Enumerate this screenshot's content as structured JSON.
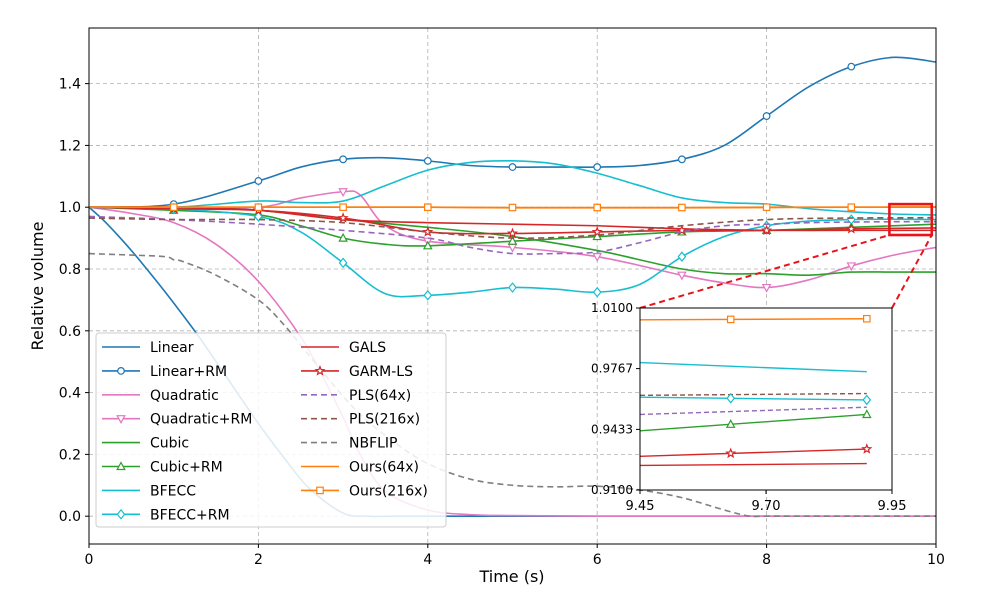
{
  "chart_data": {
    "type": "line",
    "xlabel": "Time (s)",
    "ylabel": "Relative volume",
    "xlim": [
      0,
      10
    ],
    "ylim": [
      -0.09,
      1.58
    ],
    "xticks": [
      0,
      2,
      4,
      6,
      8,
      10
    ],
    "xtick_labels": [
      "0",
      "2",
      "4",
      "6",
      "8",
      "10"
    ],
    "yticks": [
      0.0,
      0.2,
      0.4,
      0.6,
      0.8,
      1.0,
      1.2,
      1.4
    ],
    "ytick_labels": [
      "0.0",
      "0.2",
      "0.4",
      "0.6",
      "0.8",
      "1.0",
      "1.2",
      "1.4"
    ],
    "grid": true,
    "legend_position": "lower-left",
    "legend_columns": 2,
    "series": [
      {
        "name": "Linear",
        "color": "#1f77b4",
        "dash": "solid",
        "marker": "none",
        "x": [
          0,
          0.2,
          0.5,
          0.8,
          1.0,
          1.3,
          1.6,
          2.0,
          2.3,
          2.6,
          3.0,
          3.3,
          3.6,
          4.0,
          5.0,
          6.0,
          8.0,
          10.0
        ],
        "y": [
          1.0,
          0.95,
          0.86,
          0.76,
          0.69,
          0.58,
          0.46,
          0.3,
          0.19,
          0.09,
          0.01,
          0.0,
          0.0,
          0.0,
          0.0,
          0.0,
          0.0,
          0.0
        ]
      },
      {
        "name": "Linear+RM",
        "color": "#1f77b4",
        "dash": "solid",
        "marker": "circle",
        "x": [
          0,
          1,
          2,
          2.5,
          3,
          3.5,
          4,
          4.5,
          5,
          5.5,
          6,
          6.5,
          7,
          7.5,
          8,
          8.5,
          9,
          9.5,
          10
        ],
        "y": [
          1.0,
          1.01,
          1.085,
          1.13,
          1.155,
          1.16,
          1.15,
          1.135,
          1.13,
          1.13,
          1.13,
          1.135,
          1.155,
          1.2,
          1.295,
          1.39,
          1.455,
          1.485,
          1.47
        ],
        "marker_x": [
          1,
          2,
          3,
          4,
          5,
          6,
          7,
          8,
          9
        ]
      },
      {
        "name": "Quadratic",
        "color": "#e377c2",
        "dash": "solid",
        "marker": "none",
        "x": [
          0,
          0.5,
          1,
          1.5,
          2,
          2.5,
          2.8,
          3.0,
          3.2,
          3.5,
          4,
          4.5,
          5,
          6,
          8,
          10
        ],
        "y": [
          1.0,
          0.98,
          0.95,
          0.88,
          0.76,
          0.58,
          0.43,
          0.32,
          0.2,
          0.08,
          0.02,
          0.005,
          0.002,
          0.0,
          0.0,
          0.0
        ]
      },
      {
        "name": "Quadratic+RM",
        "color": "#e377c2",
        "dash": "solid",
        "marker": "triangle-down",
        "x": [
          0,
          1,
          2,
          2.5,
          3,
          3.2,
          3.5,
          4,
          5,
          6,
          7,
          7.5,
          8,
          8.5,
          9,
          9.5,
          10
        ],
        "y": [
          1.0,
          1.0,
          1.0,
          1.03,
          1.05,
          1.04,
          0.94,
          0.89,
          0.87,
          0.84,
          0.78,
          0.755,
          0.74,
          0.765,
          0.81,
          0.845,
          0.87
        ],
        "marker_x": [
          3,
          4,
          5,
          6,
          7,
          8,
          9
        ]
      },
      {
        "name": "Cubic",
        "color": "#2ca02c",
        "dash": "solid",
        "marker": "none",
        "x": [
          0,
          1,
          2,
          3,
          4,
          5,
          6,
          6.5,
          7,
          7.5,
          8,
          8.5,
          9,
          9.5,
          10
        ],
        "y": [
          1.0,
          1.0,
          0.99,
          0.96,
          0.935,
          0.905,
          0.86,
          0.83,
          0.8,
          0.785,
          0.785,
          0.78,
          0.79,
          0.79,
          0.79
        ]
      },
      {
        "name": "Cubic+RM",
        "color": "#2ca02c",
        "dash": "solid",
        "marker": "triangle-up",
        "x": [
          0,
          1,
          2,
          2.5,
          3,
          3.5,
          4,
          5,
          6,
          7,
          8,
          9,
          10
        ],
        "y": [
          1.0,
          0.99,
          0.975,
          0.94,
          0.9,
          0.88,
          0.875,
          0.89,
          0.905,
          0.92,
          0.925,
          0.935,
          0.945
        ],
        "marker_x": [
          1,
          2,
          3,
          4,
          5,
          6,
          7,
          8,
          9
        ]
      },
      {
        "name": "BFECC",
        "color": "#17becf",
        "dash": "solid",
        "marker": "none",
        "x": [
          0,
          1,
          2,
          2.5,
          3,
          3.5,
          4,
          4.5,
          5,
          5.5,
          6,
          6.5,
          7,
          7.5,
          8,
          8.5,
          9,
          9.5,
          10
        ],
        "y": [
          1.0,
          1.0,
          1.02,
          1.015,
          1.02,
          1.07,
          1.12,
          1.145,
          1.15,
          1.14,
          1.11,
          1.07,
          1.03,
          1.015,
          1.01,
          0.995,
          0.985,
          0.978,
          0.975
        ]
      },
      {
        "name": "BFECC+RM",
        "color": "#17becf",
        "dash": "solid",
        "marker": "diamond",
        "x": [
          0,
          1,
          2,
          2.5,
          3,
          3.5,
          4,
          4.5,
          5,
          5.5,
          6,
          6.5,
          7,
          7.5,
          8,
          8.5,
          9,
          9.5,
          10
        ],
        "y": [
          1.0,
          0.995,
          0.97,
          0.92,
          0.82,
          0.72,
          0.715,
          0.725,
          0.74,
          0.735,
          0.725,
          0.75,
          0.84,
          0.905,
          0.94,
          0.955,
          0.96,
          0.961,
          0.96
        ],
        "marker_x": [
          1,
          2,
          3,
          4,
          5,
          6,
          7,
          8,
          9
        ]
      },
      {
        "name": "GALS",
        "color": "#d62728",
        "dash": "solid",
        "marker": "none",
        "x": [
          0,
          1,
          2,
          3,
          4,
          5,
          6,
          7,
          8,
          9,
          10
        ],
        "y": [
          1.0,
          1.0,
          0.99,
          0.96,
          0.95,
          0.945,
          0.94,
          0.93,
          0.925,
          0.925,
          0.925
        ]
      },
      {
        "name": "GARM-LS",
        "color": "#d62728",
        "dash": "solid",
        "marker": "star",
        "x": [
          0,
          1,
          2,
          3,
          4,
          5,
          6,
          7,
          8,
          9,
          10
        ],
        "y": [
          1.0,
          0.995,
          0.99,
          0.965,
          0.92,
          0.915,
          0.92,
          0.925,
          0.925,
          0.93,
          0.933
        ],
        "marker_x": [
          1,
          2,
          3,
          4,
          5,
          6,
          7,
          8,
          9
        ]
      },
      {
        "name": "PLS(64x)",
        "color": "#9467bd",
        "dash": "dashed",
        "marker": "none",
        "x": [
          0,
          1,
          2,
          3,
          4,
          4.5,
          5,
          5.5,
          6,
          6.5,
          7,
          7.5,
          8,
          8.5,
          9,
          9.5,
          10
        ],
        "y": [
          0.97,
          0.96,
          0.945,
          0.925,
          0.9,
          0.87,
          0.85,
          0.85,
          0.855,
          0.885,
          0.92,
          0.94,
          0.945,
          0.95,
          0.952,
          0.953,
          0.953
        ]
      },
      {
        "name": "PLS(216x)",
        "color": "#8c564b",
        "dash": "dashed",
        "marker": "none",
        "x": [
          0,
          1,
          2,
          3,
          4,
          5,
          6,
          7,
          8,
          9,
          10
        ],
        "y": [
          0.965,
          0.96,
          0.96,
          0.95,
          0.92,
          0.9,
          0.91,
          0.94,
          0.96,
          0.965,
          0.966
        ]
      },
      {
        "name": "NBFLIP",
        "color": "#7f7f7f",
        "dash": "dashed",
        "marker": "none",
        "x": [
          0,
          0.5,
          0.9,
          1.0,
          1.1,
          1.5,
          2.0,
          2.3,
          2.6,
          2.9,
          3.2,
          3.6,
          4.0,
          4.5,
          5.0,
          5.5,
          6.0,
          6.5,
          7.0,
          7.5,
          7.8,
          8.0,
          9.0,
          10.0
        ],
        "y": [
          0.85,
          0.845,
          0.84,
          0.83,
          0.825,
          0.78,
          0.7,
          0.62,
          0.52,
          0.42,
          0.33,
          0.24,
          0.17,
          0.12,
          0.1,
          0.095,
          0.097,
          0.085,
          0.06,
          0.02,
          0.0,
          0.0,
          0.0,
          0.0
        ]
      },
      {
        "name": "Ours(64x)",
        "color": "#ff7f0e",
        "dash": "solid",
        "marker": "none",
        "x": [
          0,
          1,
          2,
          3,
          4,
          5,
          6,
          7,
          8,
          9,
          10
        ],
        "y": [
          1.0,
          1.0,
          1.0,
          1.0,
          1.0,
          0.998,
          0.998,
          0.998,
          0.999,
          1.0,
          1.0
        ]
      },
      {
        "name": "Ours(216x)",
        "color": "#ff7f0e",
        "dash": "solid",
        "marker": "square",
        "x": [
          0,
          1,
          2,
          3,
          4,
          5,
          6,
          7,
          8,
          9,
          10
        ],
        "y": [
          1.0,
          1.0,
          1.0,
          1.0,
          1.0,
          0.999,
          0.999,
          0.999,
          1.0,
          1.0,
          1.001
        ],
        "marker_x": [
          1,
          2,
          3,
          4,
          5,
          6,
          7,
          8,
          9
        ]
      }
    ],
    "inset": {
      "xlim": [
        9.45,
        9.95
      ],
      "ylim": [
        0.91,
        1.01
      ],
      "xticks": [
        9.45,
        9.7,
        9.95
      ],
      "xtick_labels": [
        "9.45",
        "9.70",
        "9.95"
      ],
      "yticks": [
        0.91,
        0.9433,
        0.9767,
        1.01
      ],
      "ytick_labels": [
        "0.9100",
        "0.9433",
        "0.9767",
        "1.0100"
      ],
      "zoom_box": {
        "x": [
          9.45,
          9.95
        ],
        "y": [
          0.91,
          1.01
        ]
      },
      "series": [
        {
          "name": "Ours(216x)",
          "color": "#ff7f0e",
          "dash": "solid",
          "marker": "square",
          "x": [
            9.45,
            9.9
          ],
          "y": [
            1.0035,
            1.0041
          ],
          "marker_x": [
            9.63,
            9.9
          ]
        },
        {
          "name": "BFECC",
          "color": "#17becf",
          "dash": "solid",
          "marker": "none",
          "x": [
            9.45,
            9.9
          ],
          "y": [
            0.98,
            0.975
          ],
          "marker_x": []
        },
        {
          "name": "PLS(216x)",
          "color": "#8c564b",
          "dash": "dashed",
          "marker": "none",
          "x": [
            9.45,
            9.9
          ],
          "y": [
            0.962,
            0.963
          ],
          "marker_x": []
        },
        {
          "name": "BFECC+RM",
          "color": "#17becf",
          "dash": "solid",
          "marker": "diamond",
          "x": [
            9.45,
            9.9
          ],
          "y": [
            0.961,
            0.9595
          ],
          "marker_x": [
            9.63,
            9.9
          ]
        },
        {
          "name": "PLS(64x)",
          "color": "#9467bd",
          "dash": "dashed",
          "marker": "none",
          "x": [
            9.45,
            9.9
          ],
          "y": [
            0.9515,
            0.9555
          ],
          "marker_x": []
        },
        {
          "name": "Cubic+RM",
          "color": "#2ca02c",
          "dash": "solid",
          "marker": "triangle-up",
          "x": [
            9.45,
            9.9
          ],
          "y": [
            0.9425,
            0.9515
          ],
          "marker_x": [
            9.63,
            9.9
          ]
        },
        {
          "name": "GARM-LS",
          "color": "#d62728",
          "dash": "solid",
          "marker": "star",
          "x": [
            9.45,
            9.9
          ],
          "y": [
            0.9285,
            0.9325
          ],
          "marker_x": [
            9.63,
            9.9
          ]
        },
        {
          "name": "GALS",
          "color": "#d62728",
          "dash": "solid",
          "marker": "none",
          "x": [
            9.45,
            9.9
          ],
          "y": [
            0.9235,
            0.9245
          ],
          "marker_x": []
        }
      ]
    }
  }
}
